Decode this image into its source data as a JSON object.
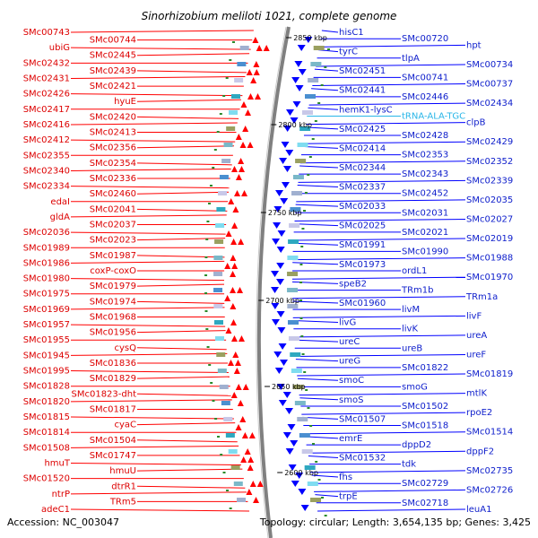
{
  "title": "Sinorhizobium meliloti 1021, complete genome",
  "footer": {
    "accession": "Accession: NC_003047",
    "summary": "Topology: circular; Length: 3,654,135 bp; Genes: 3,425"
  },
  "colors": {
    "forward": "#ff0000",
    "reverse": "#0000ff",
    "rna": "#29b6e8",
    "backbone": "#808080",
    "tick": "#2a8a2a"
  },
  "kbp_markers": [
    {
      "label": "2850 kbp"
    },
    {
      "label": "2800 kbp"
    },
    {
      "label": "2750 kbp"
    },
    {
      "label": "2700 kbp"
    },
    {
      "label": "2650 kbp"
    },
    {
      "label": "2600 kbp"
    }
  ],
  "left_labels": [
    "SMc00743",
    "SMc00744",
    "ubiG",
    "SMc02445",
    "SMc02432",
    "SMc02439",
    "SMc02431",
    "SMc02421",
    "SMc02426",
    "hyuE",
    "SMc02417",
    "SMc02420",
    "SMc02416",
    "SMc02413",
    "SMc02412",
    "SMc02356",
    "SMc02355",
    "SMc02354",
    "SMc02340",
    "SMc02336",
    "SMc02334",
    "SMc02460",
    "edaI",
    "SMc02041",
    "gldA",
    "SMc02037",
    "SMc02036",
    "SMc02023",
    "SMc01989",
    "SMc01987",
    "SMc01986",
    "coxP-coxO",
    "SMc01980",
    "SMc01979",
    "SMc01975",
    "SMc01974",
    "SMc01969",
    "SMc01968",
    "SMc01957",
    "SMc01956",
    "SMc01955",
    "cysQ",
    "SMc01945",
    "SMc01836",
    "SMc01995",
    "SMc01829",
    "SMc01828",
    "SMc01823-dht",
    "SMc01820",
    "SMc01817",
    "SMc01815",
    "cyaC",
    "SMc01814",
    "SMc01504",
    "SMc01508",
    "SMc01747",
    "hmuT",
    "hmuU",
    "SMc01520",
    "dtrR1",
    "ntrP",
    "TRm5",
    "adeC1"
  ],
  "right_labels": [
    "hisC1",
    "SMc00720",
    "hpt",
    "tyrC",
    "tlpA",
    "SMc00734",
    "SMc02451",
    "SMc00741",
    "SMc00737",
    "SMc02441",
    "SMc02446",
    "SMc02434",
    "hemK1-lysC",
    "tRNA-ALA-TGC",
    "clpB",
    "SMc02425",
    "SMc02428",
    "SMc02429",
    "SMc02414",
    "SMc02353",
    "SMc02352",
    "SMc02344",
    "SMc02343",
    "SMc02339",
    "SMc02337",
    "SMc02452",
    "SMc02035",
    "SMc02033",
    "SMc02031",
    "SMc02027",
    "SMc02025",
    "SMc02021",
    "SMc02019",
    "SMc01991",
    "SMc01990",
    "SMc01988",
    "SMc01973",
    "ordL1",
    "SMc01970",
    "speB2",
    "TRm1b",
    "TRm1a",
    "SMc01960",
    "livM",
    "livF",
    "livG",
    "livK",
    "ureA",
    "ureC",
    "ureB",
    "ureF",
    "ureG",
    "SMc01822",
    "SMc01819",
    "smoC",
    "smoG",
    "mtlK",
    "smoS",
    "SMc01502",
    "rpoE2",
    "SMc01507",
    "SMc01518",
    "SMc01514",
    "emrE",
    "dppD2",
    "dppF2",
    "SMc01532",
    "tdk",
    "SMc02735",
    "fhs",
    "SMc02729",
    "SMc02726",
    "trpE",
    "SMc02718",
    "leuA1"
  ]
}
